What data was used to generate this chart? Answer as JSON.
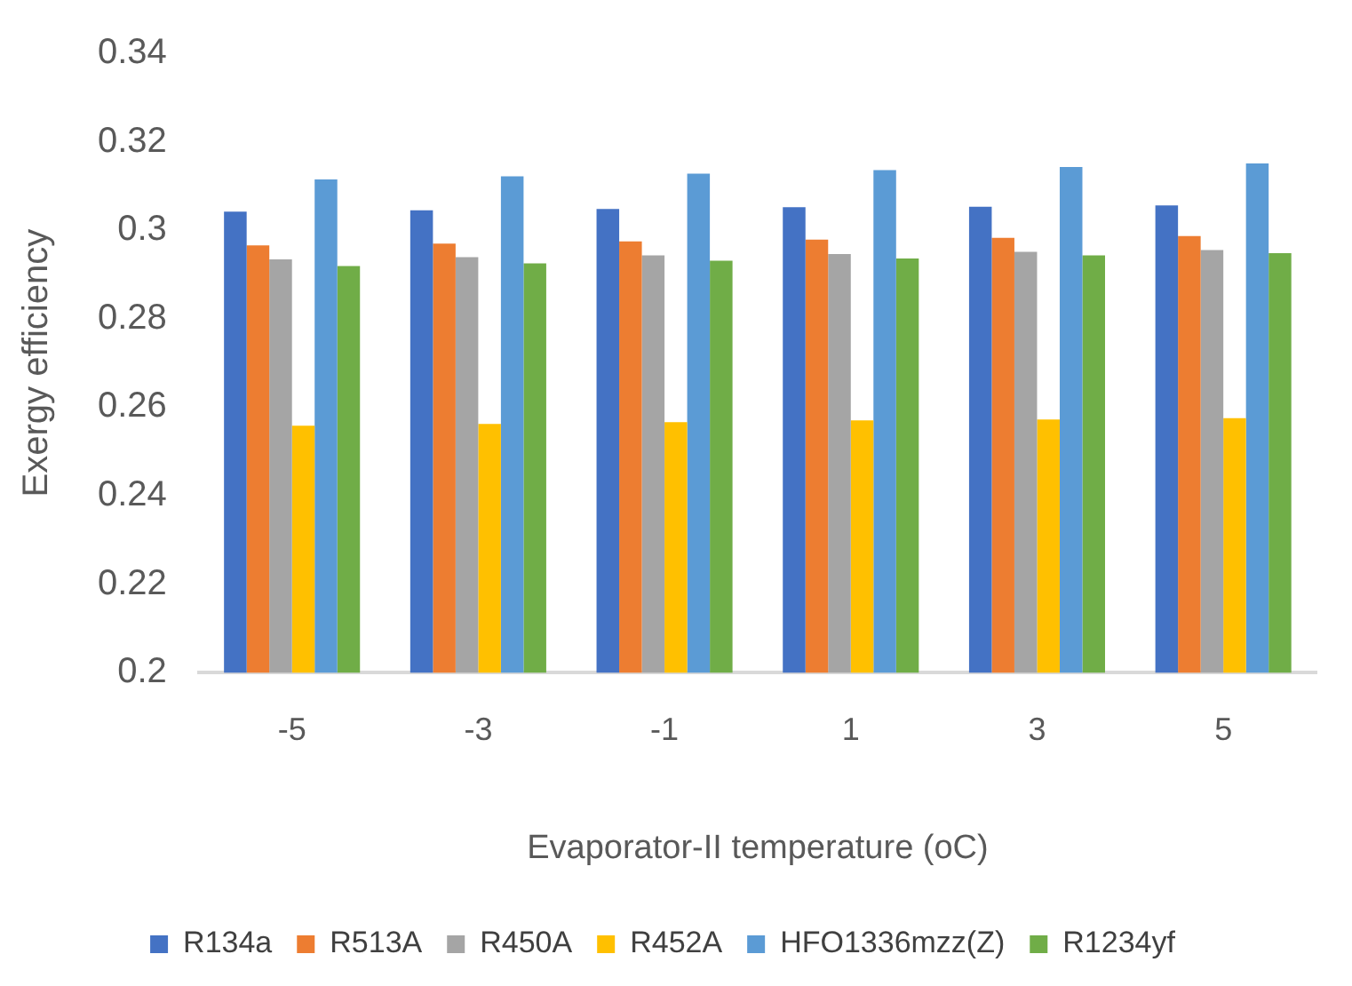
{
  "chart_data": {
    "type": "bar",
    "xlabel": "Evaporator-II temperature (oC)",
    "ylabel": "Exergy efficiency",
    "categories": [
      "-5",
      "-3",
      "-1",
      "1",
      "3",
      "5"
    ],
    "series": [
      {
        "name": "R134a",
        "color": "#4472c4",
        "values": [
          0.3042,
          0.3045,
          0.3048,
          0.3052,
          0.3053,
          0.3056
        ]
      },
      {
        "name": "R513A",
        "color": "#ed7d31",
        "values": [
          0.2966,
          0.297,
          0.2975,
          0.2979,
          0.2983,
          0.2987
        ]
      },
      {
        "name": "R450A",
        "color": "#a5a5a5",
        "values": [
          0.2934,
          0.2939,
          0.2943,
          0.2946,
          0.2951,
          0.2955
        ]
      },
      {
        "name": "R452A",
        "color": "#ffc000",
        "values": [
          0.2558,
          0.2562,
          0.2566,
          0.257,
          0.2572,
          0.2575
        ]
      },
      {
        "name": "HFO1336mzz(Z)",
        "color": "#5b9bd5",
        "values": [
          0.3115,
          0.3122,
          0.3128,
          0.3136,
          0.3143,
          0.3151
        ]
      },
      {
        "name": "R1234yf",
        "color": "#70ad47",
        "values": [
          0.2919,
          0.2925,
          0.2931,
          0.2936,
          0.2943,
          0.2948
        ]
      }
    ],
    "ylim": [
      0.2,
      0.34
    ],
    "yticks": [
      0.2,
      0.22,
      0.24,
      0.26,
      0.28,
      0.3,
      0.32,
      0.34
    ],
    "grid": false,
    "legend": "bottom"
  }
}
